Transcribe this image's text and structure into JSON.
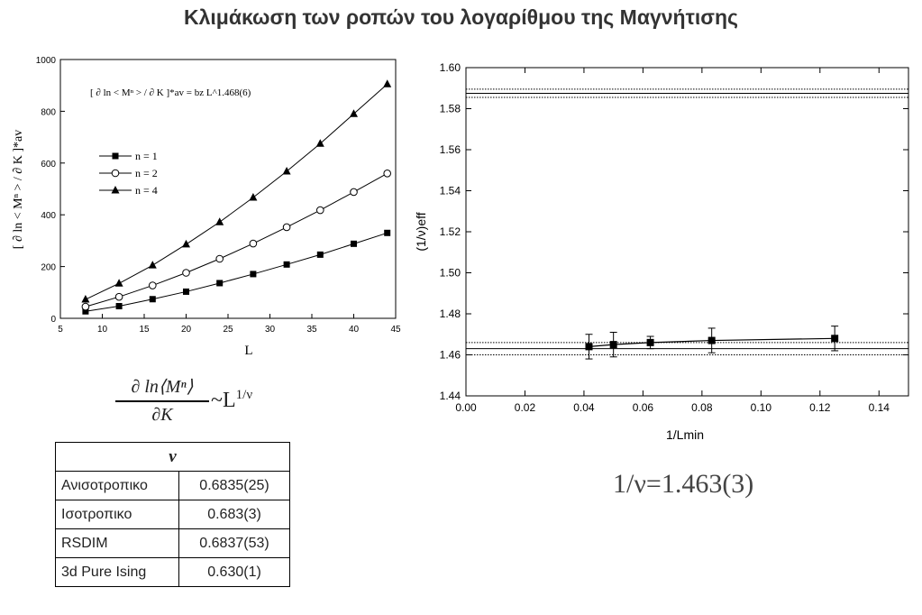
{
  "title": "Κλιμάκωση των ροπών του λογαρίθμου της Μαγνήτισης",
  "formula": {
    "numerator": "∂ ln⟨Mⁿ⟩",
    "denominator": "∂K",
    "rhs": "~L",
    "exponent": "1/ν"
  },
  "table": {
    "header": "ν",
    "rows": [
      {
        "label": "Ανισοτροπικο",
        "value": "0.6835(25)"
      },
      {
        "label": "Ισοτροπικο",
        "value": "0.683(3)"
      },
      {
        "label": "RSDIM",
        "value": "0.6837(53)"
      },
      {
        "label": "3d  Pure Ising",
        "value": "0.630(1)"
      }
    ]
  },
  "result_text": "1/ν=1.463(3)",
  "chart_data": [
    {
      "type": "line",
      "xlabel": "L",
      "ylabel": "[ ∂ ln < Mⁿ > / ∂ K ]*av",
      "xlim": [
        5,
        45
      ],
      "ylim": [
        0,
        1000
      ],
      "xticks": [
        5,
        10,
        15,
        20,
        25,
        30,
        35,
        40,
        45
      ],
      "yticks": [
        0,
        200,
        400,
        600,
        800,
        1000
      ],
      "annotation": "[ ∂ ln < Mⁿ > / ∂ K ]*av = bz L^1.468(6)",
      "legend_position": "top-left",
      "x": [
        8,
        12,
        16,
        20,
        24,
        28,
        32,
        36,
        40,
        44
      ],
      "series": [
        {
          "name": "n = 1",
          "marker": "square-filled",
          "values": [
            27,
            47,
            74,
            103,
            136,
            171,
            208,
            246,
            288,
            330
          ]
        },
        {
          "name": "n = 2",
          "marker": "circle-open",
          "values": [
            45,
            83,
            127,
            176,
            230,
            289,
            352,
            418,
            488,
            560
          ]
        },
        {
          "name": "n = 4",
          "marker": "triangle-filled",
          "values": [
            73,
            135,
            205,
            286,
            372,
            467,
            568,
            675,
            790,
            905
          ]
        }
      ]
    },
    {
      "type": "scatter",
      "xlabel": "1/Lmin",
      "ylabel": "(1/ν)eff",
      "xlim": [
        0.0,
        0.15
      ],
      "ylim": [
        1.44,
        1.6
      ],
      "xticks": [
        0.0,
        0.02,
        0.04,
        0.06,
        0.08,
        0.1,
        0.12,
        0.14
      ],
      "yticks": [
        1.44,
        1.46,
        1.48,
        1.5,
        1.52,
        1.54,
        1.56,
        1.58,
        1.6
      ],
      "points": [
        {
          "x": 0.0417,
          "y": 1.464,
          "err": 0.006
        },
        {
          "x": 0.05,
          "y": 1.465,
          "err": 0.006
        },
        {
          "x": 0.0625,
          "y": 1.466,
          "err": 0.003
        },
        {
          "x": 0.0833,
          "y": 1.467,
          "err": 0.006
        },
        {
          "x": 0.125,
          "y": 1.468,
          "err": 0.006
        }
      ],
      "hlines": [
        {
          "y": 1.463,
          "style": "solid"
        },
        {
          "y": 1.466,
          "style": "dotted"
        },
        {
          "y": 1.46,
          "style": "dotted"
        },
        {
          "y": 1.5875,
          "style": "solid"
        },
        {
          "y": 1.5895,
          "style": "dotted"
        },
        {
          "y": 1.5855,
          "style": "dotted"
        }
      ]
    }
  ]
}
